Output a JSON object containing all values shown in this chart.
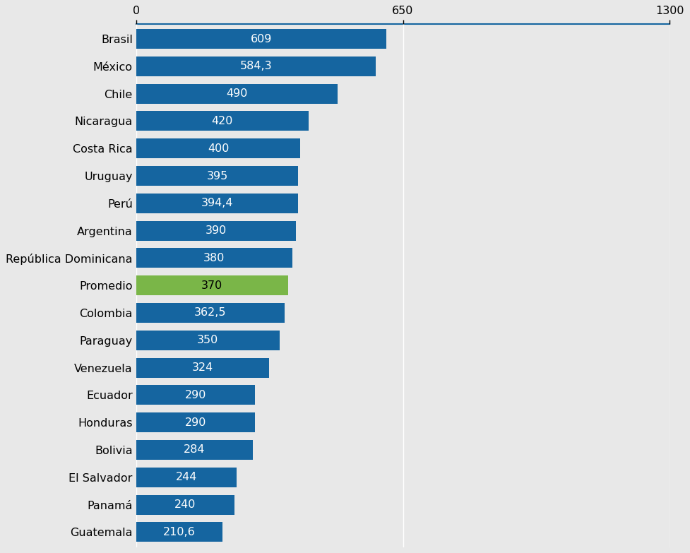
{
  "categories": [
    "Brasil",
    "México",
    "Chile",
    "Nicaragua",
    "Costa Rica",
    "Uruguay",
    "Perú",
    "Argentina",
    "República Dominicana",
    "Promedio",
    "Colombia",
    "Paraguay",
    "Venezuela",
    "Ecuador",
    "Honduras",
    "Bolivia",
    "El Salvador",
    "Panamá",
    "Guatemala"
  ],
  "values": [
    609,
    584.3,
    490,
    420,
    400,
    395,
    394.4,
    390,
    380,
    370,
    362.5,
    350,
    324,
    290,
    290,
    284,
    244,
    240,
    210.6
  ],
  "labels": [
    "609",
    "584,3",
    "490",
    "420",
    "400",
    "395",
    "394,4",
    "390",
    "380",
    "370",
    "362,5",
    "350",
    "324",
    "290",
    "290",
    "284",
    "244",
    "240",
    "210,6"
  ],
  "bar_colors": [
    "#1565a0",
    "#1565a0",
    "#1565a0",
    "#1565a0",
    "#1565a0",
    "#1565a0",
    "#1565a0",
    "#1565a0",
    "#1565a0",
    "#7ab648",
    "#1565a0",
    "#1565a0",
    "#1565a0",
    "#1565a0",
    "#1565a0",
    "#1565a0",
    "#1565a0",
    "#1565a0",
    "#1565a0"
  ],
  "xlim": [
    0,
    1300
  ],
  "xticks": [
    0,
    650,
    1300
  ],
  "background_color": "#e8e8e8",
  "bar_height": 0.72,
  "label_fontsize": 11.5,
  "tick_fontsize": 11.5,
  "text_color_inside": "#ffffff",
  "text_color_promedio": "#000000",
  "grid_color": "#ffffff",
  "spine_color": "#1565a0"
}
